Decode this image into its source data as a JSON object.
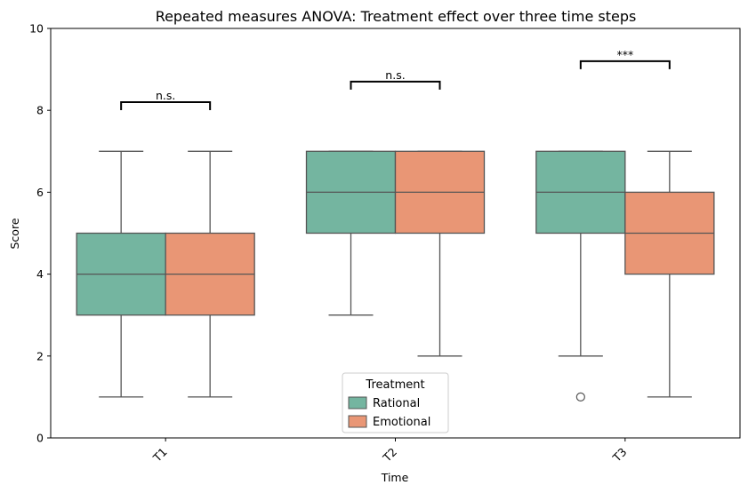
{
  "chart_data": {
    "type": "box",
    "title": "Repeated measures ANOVA: Treatment effect over three time steps",
    "xlabel": "Time",
    "ylabel": "Score",
    "ylim": [
      0,
      10
    ],
    "yticks": [
      0,
      2,
      4,
      6,
      8,
      10
    ],
    "categories": [
      "T1",
      "T2",
      "T3"
    ],
    "legend": {
      "title": "Treatment",
      "placement": "lower-center"
    },
    "series": [
      {
        "name": "Rational",
        "color": "#74b5a0",
        "boxes": [
          {
            "whisker_low": 1,
            "q1": 3,
            "median": 4,
            "q3": 5,
            "whisker_high": 7,
            "outliers": []
          },
          {
            "whisker_low": 3,
            "q1": 5,
            "median": 6,
            "q3": 7,
            "whisker_high": 7,
            "outliers": []
          },
          {
            "whisker_low": 2,
            "q1": 5,
            "median": 6,
            "q3": 7,
            "whisker_high": 7,
            "outliers": [
              1
            ]
          }
        ]
      },
      {
        "name": "Emotional",
        "color": "#e99675",
        "boxes": [
          {
            "whisker_low": 1,
            "q1": 3,
            "median": 4,
            "q3": 5,
            "whisker_high": 7,
            "outliers": []
          },
          {
            "whisker_low": 2,
            "q1": 5,
            "median": 6,
            "q3": 7,
            "whisker_high": 7,
            "outliers": []
          },
          {
            "whisker_low": 1,
            "q1": 4,
            "median": 5,
            "q3": 6,
            "whisker_high": 7,
            "outliers": []
          }
        ]
      }
    ],
    "annotations": [
      {
        "category": "T1",
        "text": "n.s.",
        "y": 8.2
      },
      {
        "category": "T2",
        "text": "n.s.",
        "y": 8.7
      },
      {
        "category": "T3",
        "text": "***",
        "y": 9.2
      }
    ]
  }
}
